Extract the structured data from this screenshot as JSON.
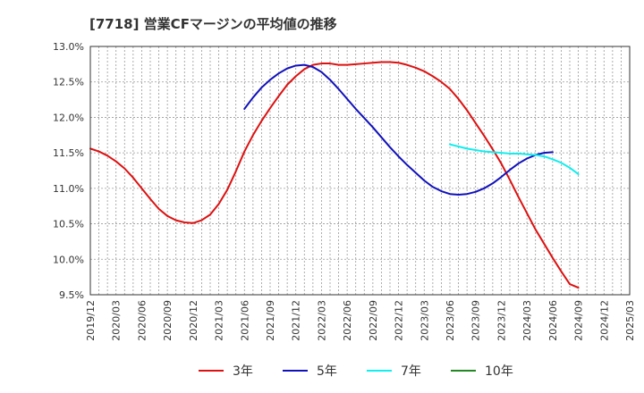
{
  "chart_data": {
    "type": "line",
    "title": "[7718]  営業CFマージンの平均値の推移",
    "x_categories": [
      "2019/12",
      "2020/03",
      "2020/06",
      "2020/09",
      "2020/12",
      "2021/03",
      "2021/06",
      "2021/09",
      "2021/12",
      "2022/03",
      "2022/06",
      "2022/09",
      "2022/12",
      "2023/03",
      "2023/06",
      "2023/09",
      "2023/12",
      "2024/03",
      "2024/06",
      "2024/09",
      "2024/12",
      "2025/03"
    ],
    "y_ticks": [
      "13.0%",
      "12.5%",
      "12.0%",
      "11.5%",
      "11.0%",
      "10.5%",
      "10.0%",
      "9.5%"
    ],
    "ylim": [
      9.5,
      13.0
    ],
    "y_unit": "%",
    "grid": true,
    "legend_position": "bottom",
    "series": [
      {
        "name": "3年",
        "color": "#dd1111",
        "points": [
          [
            "2019/12",
            11.56
          ],
          [
            "2020/01",
            11.52
          ],
          [
            "2020/02",
            11.46
          ],
          [
            "2020/03",
            11.38
          ],
          [
            "2020/04",
            11.28
          ],
          [
            "2020/05",
            11.15
          ],
          [
            "2020/06",
            11.0
          ],
          [
            "2020/07",
            10.85
          ],
          [
            "2020/08",
            10.71
          ],
          [
            "2020/09",
            10.61
          ],
          [
            "2020/10",
            10.55
          ],
          [
            "2020/11",
            10.52
          ],
          [
            "2020/12",
            10.51
          ],
          [
            "2021/01",
            10.55
          ],
          [
            "2021/02",
            10.63
          ],
          [
            "2021/03",
            10.78
          ],
          [
            "2021/04",
            10.98
          ],
          [
            "2021/05",
            11.24
          ],
          [
            "2021/06",
            11.52
          ],
          [
            "2021/07",
            11.75
          ],
          [
            "2021/08",
            11.95
          ],
          [
            "2021/09",
            12.13
          ],
          [
            "2021/10",
            12.3
          ],
          [
            "2021/11",
            12.46
          ],
          [
            "2021/12",
            12.58
          ],
          [
            "2022/01",
            12.68
          ],
          [
            "2022/02",
            12.74
          ],
          [
            "2022/03",
            12.76
          ],
          [
            "2022/04",
            12.76
          ],
          [
            "2022/05",
            12.74
          ],
          [
            "2022/06",
            12.74
          ],
          [
            "2022/07",
            12.75
          ],
          [
            "2022/08",
            12.76
          ],
          [
            "2022/09",
            12.77
          ],
          [
            "2022/10",
            12.78
          ],
          [
            "2022/11",
            12.78
          ],
          [
            "2022/12",
            12.77
          ],
          [
            "2023/01",
            12.74
          ],
          [
            "2023/02",
            12.7
          ],
          [
            "2023/03",
            12.65
          ],
          [
            "2023/04",
            12.58
          ],
          [
            "2023/05",
            12.5
          ],
          [
            "2023/06",
            12.4
          ],
          [
            "2023/07",
            12.26
          ],
          [
            "2023/08",
            12.1
          ],
          [
            "2023/09",
            11.92
          ],
          [
            "2023/10",
            11.74
          ],
          [
            "2023/11",
            11.55
          ],
          [
            "2023/12",
            11.35
          ],
          [
            "2024/01",
            11.12
          ],
          [
            "2024/02",
            10.88
          ],
          [
            "2024/03",
            10.65
          ],
          [
            "2024/04",
            10.42
          ],
          [
            "2024/05",
            10.22
          ],
          [
            "2024/06",
            10.02
          ],
          [
            "2024/07",
            9.83
          ],
          [
            "2024/08",
            9.65
          ],
          [
            "2024/09",
            9.6
          ]
        ]
      },
      {
        "name": "5年",
        "color": "#1111bb",
        "points": [
          [
            "2021/06",
            12.12
          ],
          [
            "2021/07",
            12.28
          ],
          [
            "2021/08",
            12.42
          ],
          [
            "2021/09",
            12.53
          ],
          [
            "2021/10",
            12.62
          ],
          [
            "2021/11",
            12.69
          ],
          [
            "2021/12",
            12.73
          ],
          [
            "2022/01",
            12.74
          ],
          [
            "2022/02",
            12.71
          ],
          [
            "2022/03",
            12.64
          ],
          [
            "2022/04",
            12.53
          ],
          [
            "2022/05",
            12.4
          ],
          [
            "2022/06",
            12.26
          ],
          [
            "2022/07",
            12.12
          ],
          [
            "2022/08",
            11.99
          ],
          [
            "2022/09",
            11.86
          ],
          [
            "2022/10",
            11.72
          ],
          [
            "2022/11",
            11.58
          ],
          [
            "2022/12",
            11.45
          ],
          [
            "2023/01",
            11.33
          ],
          [
            "2023/02",
            11.22
          ],
          [
            "2023/03",
            11.11
          ],
          [
            "2023/04",
            11.02
          ],
          [
            "2023/05",
            10.96
          ],
          [
            "2023/06",
            10.92
          ],
          [
            "2023/07",
            10.91
          ],
          [
            "2023/08",
            10.92
          ],
          [
            "2023/09",
            10.95
          ],
          [
            "2023/10",
            11.0
          ],
          [
            "2023/11",
            11.07
          ],
          [
            "2023/12",
            11.16
          ],
          [
            "2024/01",
            11.26
          ],
          [
            "2024/02",
            11.35
          ],
          [
            "2024/03",
            11.42
          ],
          [
            "2024/04",
            11.47
          ],
          [
            "2024/05",
            11.5
          ],
          [
            "2024/06",
            11.51
          ]
        ]
      },
      {
        "name": "7年",
        "color": "#11eeee",
        "points": [
          [
            "2023/06",
            11.62
          ],
          [
            "2023/07",
            11.59
          ],
          [
            "2023/08",
            11.56
          ],
          [
            "2023/09",
            11.54
          ],
          [
            "2023/10",
            11.52
          ],
          [
            "2023/11",
            11.51
          ],
          [
            "2023/12",
            11.5
          ],
          [
            "2024/01",
            11.49
          ],
          [
            "2024/02",
            11.49
          ],
          [
            "2024/03",
            11.48
          ],
          [
            "2024/04",
            11.47
          ],
          [
            "2024/05",
            11.45
          ],
          [
            "2024/06",
            11.41
          ],
          [
            "2024/07",
            11.36
          ],
          [
            "2024/08",
            11.29
          ],
          [
            "2024/09",
            11.2
          ]
        ]
      },
      {
        "name": "10年",
        "color": "#228822",
        "points": []
      }
    ]
  }
}
